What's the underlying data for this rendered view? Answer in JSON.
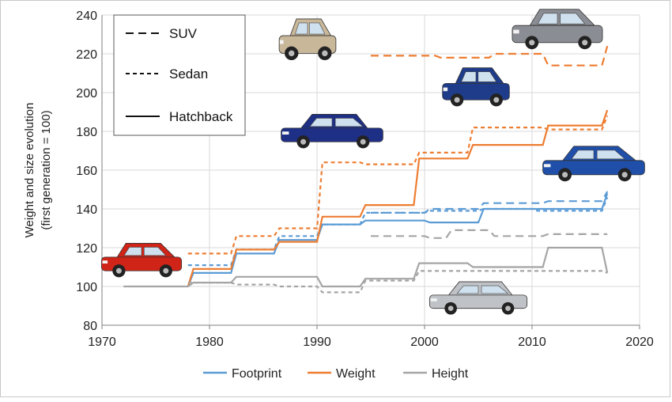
{
  "chart_data": {
    "type": "line",
    "ylabel_line1": "Weight and size evolution",
    "ylabel_line2": "(first generation = 100)",
    "xlim": [
      1970,
      2020
    ],
    "ylim": [
      80,
      240
    ],
    "x_ticks": [
      1970,
      1980,
      1990,
      2000,
      2010,
      2020
    ],
    "y_ticks": [
      80,
      100,
      120,
      140,
      160,
      180,
      200,
      220,
      240
    ],
    "grid": true,
    "colors": {
      "Footprint": "#5b9bd5",
      "Weight": "#ed7d31",
      "Height": "#a5a5a5"
    },
    "color_legend": [
      "Footprint",
      "Weight",
      "Height"
    ],
    "style_legend": [
      {
        "label": "SUV",
        "dash": "long-dash"
      },
      {
        "label": "Sedan",
        "dash": "short-dash"
      },
      {
        "label": "Hatchback",
        "dash": "solid"
      }
    ],
    "series": [
      {
        "metric": "Footprint",
        "body": "Hatchback",
        "points": [
          [
            1978,
            100
          ],
          [
            1978.5,
            107
          ],
          [
            1982,
            107
          ],
          [
            1982.5,
            117
          ],
          [
            1986,
            117
          ],
          [
            1986.5,
            124
          ],
          [
            1990,
            124
          ],
          [
            1990.5,
            132
          ],
          [
            1994,
            132
          ],
          [
            1994.5,
            134
          ],
          [
            2000,
            134
          ],
          [
            2000.5,
            133
          ],
          [
            2005,
            133
          ],
          [
            2005.5,
            140
          ],
          [
            2016.5,
            140
          ],
          [
            2017,
            148
          ]
        ]
      },
      {
        "metric": "Footprint",
        "body": "Sedan",
        "points": [
          [
            1978,
            111
          ],
          [
            1982,
            111
          ],
          [
            1982.5,
            119
          ],
          [
            1986,
            119
          ],
          [
            1986.5,
            126
          ],
          [
            1990,
            126
          ],
          [
            1990.5,
            132
          ],
          [
            1994,
            132
          ],
          [
            1994.5,
            138
          ],
          [
            2000,
            138
          ],
          [
            2000.5,
            139
          ],
          [
            2005,
            139
          ],
          [
            2005.5,
            140
          ],
          [
            2010,
            140
          ],
          [
            2010.5,
            139
          ],
          [
            2016.5,
            139
          ],
          [
            2017,
            146
          ]
        ]
      },
      {
        "metric": "Footprint",
        "body": "SUV",
        "points": [
          [
            1995,
            138
          ],
          [
            2000,
            138
          ],
          [
            2000.5,
            140
          ],
          [
            2005,
            140
          ],
          [
            2005.5,
            143
          ],
          [
            2011,
            143
          ],
          [
            2011.5,
            144
          ],
          [
            2016.5,
            144
          ],
          [
            2017,
            149
          ]
        ]
      },
      {
        "metric": "Weight",
        "body": "Hatchback",
        "points": [
          [
            1978,
            100
          ],
          [
            1978.5,
            109
          ],
          [
            1982,
            109
          ],
          [
            1982.5,
            119
          ],
          [
            1986,
            119
          ],
          [
            1986.5,
            123
          ],
          [
            1990,
            123
          ],
          [
            1990.5,
            136
          ],
          [
            1994,
            136
          ],
          [
            1994.5,
            142
          ],
          [
            1999,
            142
          ],
          [
            1999.5,
            166
          ],
          [
            2004,
            166
          ],
          [
            2004.5,
            173
          ],
          [
            2011,
            173
          ],
          [
            2011.5,
            183
          ],
          [
            2016.5,
            183
          ],
          [
            2017,
            191
          ]
        ]
      },
      {
        "metric": "Weight",
        "body": "Sedan",
        "points": [
          [
            1978,
            117
          ],
          [
            1982,
            117
          ],
          [
            1982.5,
            126
          ],
          [
            1986,
            126
          ],
          [
            1986.5,
            130
          ],
          [
            1990,
            130
          ],
          [
            1990.5,
            164
          ],
          [
            1994,
            164
          ],
          [
            1994.5,
            163
          ],
          [
            1999,
            163
          ],
          [
            1999.5,
            169
          ],
          [
            2004,
            169
          ],
          [
            2004.5,
            182
          ],
          [
            2011,
            182
          ],
          [
            2011.5,
            181
          ],
          [
            2016.5,
            181
          ],
          [
            2017,
            188
          ]
        ]
      },
      {
        "metric": "Weight",
        "body": "SUV",
        "points": [
          [
            1995,
            219
          ],
          [
            2001,
            219
          ],
          [
            2001.5,
            218
          ],
          [
            2006,
            218
          ],
          [
            2006.5,
            220
          ],
          [
            2011,
            220
          ],
          [
            2011.5,
            214
          ],
          [
            2016.5,
            214
          ],
          [
            2017,
            224
          ]
        ]
      },
      {
        "metric": "Height",
        "body": "Hatchback",
        "points": [
          [
            1972,
            100
          ],
          [
            1978,
            100
          ],
          [
            1978.5,
            102
          ],
          [
            1982,
            102
          ],
          [
            1982.5,
            105
          ],
          [
            1990,
            105
          ],
          [
            1990.5,
            100
          ],
          [
            1994,
            100
          ],
          [
            1994.5,
            104
          ],
          [
            1999,
            104
          ],
          [
            1999.5,
            112
          ],
          [
            2004,
            112
          ],
          [
            2004.5,
            110
          ],
          [
            2011,
            110
          ],
          [
            2011.5,
            120
          ],
          [
            2016.5,
            120
          ],
          [
            2017,
            107
          ]
        ]
      },
      {
        "metric": "Height",
        "body": "Sedan",
        "points": [
          [
            1978,
            102
          ],
          [
            1982,
            102
          ],
          [
            1982.5,
            101
          ],
          [
            1986,
            101
          ],
          [
            1986.5,
            100
          ],
          [
            1990,
            100
          ],
          [
            1990.5,
            97
          ],
          [
            1994,
            97
          ],
          [
            1994.5,
            103
          ],
          [
            1999,
            103
          ],
          [
            1999.5,
            108
          ],
          [
            2016.5,
            108
          ],
          [
            2017,
            107
          ]
        ]
      },
      {
        "metric": "Height",
        "body": "SUV",
        "points": [
          [
            1995,
            126
          ],
          [
            2000,
            126
          ],
          [
            2000.5,
            125
          ],
          [
            2002,
            125
          ],
          [
            2002.5,
            129
          ],
          [
            2006,
            129
          ],
          [
            2006.5,
            126
          ],
          [
            2011,
            126
          ],
          [
            2011.5,
            127
          ],
          [
            2017,
            127
          ]
        ]
      }
    ],
    "car_images": [
      {
        "name": "suv-first-generation",
        "color": "#c9b79a"
      },
      {
        "name": "suv-second-generation",
        "color": "#1f3c8a"
      },
      {
        "name": "suv-latest-generation",
        "color": "#8a8d93"
      },
      {
        "name": "sedan-first-blue",
        "color": "#1e2f86"
      },
      {
        "name": "hatchback-latest-blue",
        "color": "#1f4fa8"
      },
      {
        "name": "hatchback-first-red",
        "color": "#d02418"
      },
      {
        "name": "sedan-silver",
        "color": "#bfc2c6"
      }
    ]
  }
}
